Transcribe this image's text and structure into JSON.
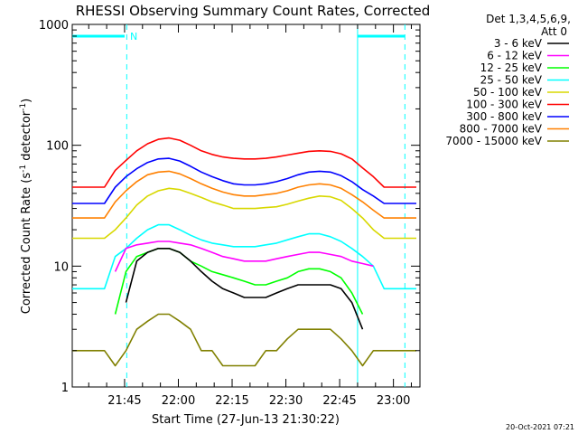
{
  "chart_data": {
    "type": "line",
    "title": "RHESSI Observing Summary Count Rates, Corrected",
    "xlabel": "Start Time (27-Jun-13 21:30:22)",
    "ylabel_main": "Corrected Count Rate (s",
    "ylabel_sup1": "-1",
    "ylabel_mid": " detector",
    "ylabel_sup2": "-1",
    "ylabel_end": ")",
    "y_scale": "log",
    "ylim": [
      1,
      1000
    ],
    "xlim_minutes": [
      0,
      97
    ],
    "x_ticks": [
      {
        "label": "21:45",
        "minute": 14.6
      },
      {
        "label": "22:00",
        "minute": 29.6
      },
      {
        "label": "22:15",
        "minute": 44.6
      },
      {
        "label": "22:30",
        "minute": 59.6
      },
      {
        "label": "22:45",
        "minute": 74.6
      },
      {
        "label": "23:00",
        "minute": 89.6
      }
    ],
    "y_ticks": [
      {
        "label": "1",
        "value": 1
      },
      {
        "label": "10",
        "value": 10
      },
      {
        "label": "100",
        "value": 100
      },
      {
        "label": "1000",
        "value": 1000
      }
    ],
    "legend_title": "Det 1,3,4,5,6,9,",
    "legend_subtitle": "Att 0",
    "legend_position": "right",
    "series": [
      {
        "name": "3 - 6 keV",
        "color": "#000000",
        "x": [
          15,
          18,
          21,
          24,
          27,
          30,
          33,
          36,
          39,
          42,
          45,
          48,
          51,
          54,
          57,
          60,
          63,
          66,
          69,
          72,
          75,
          78,
          81
        ],
        "y": [
          5,
          11,
          13,
          14,
          14,
          13,
          11,
          9,
          7.5,
          6.5,
          6,
          5.5,
          5.5,
          5.5,
          6,
          6.5,
          7,
          7,
          7,
          7,
          6.5,
          5,
          3
        ]
      },
      {
        "name": "6 - 12 keV",
        "color": "#ff00ff",
        "x": [
          12,
          15,
          18,
          21,
          24,
          27,
          30,
          33,
          36,
          39,
          42,
          45,
          48,
          51,
          54,
          57,
          60,
          63,
          66,
          69,
          72,
          75,
          78,
          81,
          84
        ],
        "y": [
          9,
          14,
          15,
          15.5,
          16,
          16,
          15.5,
          15,
          14,
          13,
          12,
          11.5,
          11,
          11,
          11,
          11.5,
          12,
          12.5,
          13,
          13,
          12.5,
          12,
          11,
          10.5,
          10
        ]
      },
      {
        "name": "12 - 25 keV",
        "color": "#00ff00",
        "x": [
          12,
          15,
          18,
          21,
          24,
          27,
          30,
          33,
          36,
          39,
          42,
          45,
          48,
          51,
          54,
          57,
          60,
          63,
          66,
          69,
          72,
          75,
          78,
          81
        ],
        "y": [
          4,
          9,
          12,
          13,
          14,
          14,
          13,
          11,
          10,
          9,
          8.5,
          8,
          7.5,
          7,
          7,
          7.5,
          8,
          9,
          9.5,
          9.5,
          9,
          8,
          6,
          4
        ]
      },
      {
        "name": "25 - 50 keV",
        "color": "#00ffff",
        "x": [
          0,
          3,
          6,
          9,
          12,
          15,
          18,
          21,
          24,
          27,
          30,
          33,
          36,
          39,
          42,
          45,
          48,
          51,
          54,
          57,
          60,
          63,
          66,
          69,
          72,
          75,
          78,
          81,
          84,
          87,
          90,
          93,
          96
        ],
        "y": [
          6.5,
          6.5,
          6.5,
          6.5,
          12,
          14,
          17,
          20,
          22,
          22,
          20,
          18,
          16.5,
          15.5,
          15,
          14.5,
          14.5,
          14.5,
          15,
          15.5,
          16.5,
          17.5,
          18.5,
          18.5,
          17.5,
          16,
          14,
          12,
          10,
          6.5,
          6.5,
          6.5,
          6.5
        ]
      },
      {
        "name": "50 - 100 keV",
        "color": "#d8d800",
        "x": [
          0,
          3,
          6,
          9,
          12,
          15,
          18,
          21,
          24,
          27,
          30,
          33,
          36,
          39,
          42,
          45,
          48,
          51,
          54,
          57,
          60,
          63,
          66,
          69,
          72,
          75,
          78,
          81,
          84,
          87,
          90,
          93,
          96
        ],
        "y": [
          17,
          17,
          17,
          17,
          20,
          25,
          32,
          38,
          42,
          44,
          43,
          40,
          37,
          34,
          32,
          30,
          30,
          30,
          30.5,
          31,
          32.5,
          34.5,
          36.5,
          38,
          37.5,
          35,
          30,
          25,
          20,
          17,
          17,
          17,
          17
        ]
      },
      {
        "name": "100 - 300 keV",
        "color": "#ff0000",
        "x": [
          0,
          3,
          6,
          9,
          12,
          15,
          18,
          21,
          24,
          27,
          30,
          33,
          36,
          39,
          42,
          45,
          48,
          51,
          54,
          57,
          60,
          63,
          66,
          69,
          72,
          75,
          78,
          81,
          84,
          87,
          90,
          93,
          96
        ],
        "y": [
          45,
          45,
          45,
          45,
          62,
          75,
          90,
          103,
          112,
          115,
          110,
          100,
          90,
          84,
          80,
          78,
          77,
          77,
          78,
          80,
          83,
          86,
          89,
          90,
          89,
          85,
          77,
          65,
          55,
          45,
          45,
          45,
          45
        ]
      },
      {
        "name": "300 - 800 keV",
        "color": "#0000ff",
        "x": [
          0,
          3,
          6,
          9,
          12,
          15,
          18,
          21,
          24,
          27,
          30,
          33,
          36,
          39,
          42,
          45,
          48,
          51,
          54,
          57,
          60,
          63,
          66,
          69,
          72,
          75,
          78,
          81,
          84,
          87,
          90,
          93,
          96
        ],
        "y": [
          33,
          33,
          33,
          33,
          45,
          55,
          64,
          72,
          77,
          78,
          74,
          67,
          60,
          55,
          51,
          48,
          47,
          47,
          48,
          50,
          53,
          57,
          60,
          61,
          60,
          56,
          50,
          43,
          38,
          33,
          33,
          33,
          33
        ]
      },
      {
        "name": "800 - 7000 keV",
        "color": "#ff8000",
        "x": [
          0,
          3,
          6,
          9,
          12,
          15,
          18,
          21,
          24,
          27,
          30,
          33,
          36,
          39,
          42,
          45,
          48,
          51,
          54,
          57,
          60,
          63,
          66,
          69,
          72,
          75,
          78,
          81,
          84,
          87,
          90,
          93,
          96
        ],
        "y": [
          25,
          25,
          25,
          25,
          34,
          42,
          50,
          57,
          60,
          61,
          58,
          53,
          48,
          44,
          41,
          39,
          38,
          38,
          39,
          40,
          42,
          45,
          47,
          48,
          47,
          44,
          39,
          34,
          29,
          25,
          25,
          25,
          25
        ]
      },
      {
        "name": "7000 - 15000 keV",
        "color": "#808000",
        "x": [
          0,
          3,
          6,
          9,
          12,
          15,
          18,
          21,
          24,
          27,
          30,
          33,
          36,
          39,
          42,
          45,
          48,
          51,
          54,
          57,
          60,
          63,
          66,
          69,
          72,
          75,
          78,
          81,
          84,
          87,
          90,
          93,
          96
        ],
        "y": [
          2,
          2,
          2,
          2,
          1.5,
          2,
          3,
          3.5,
          4,
          4,
          3.5,
          3,
          2,
          2,
          1.5,
          1.5,
          1.5,
          1.5,
          2,
          2,
          2.5,
          3,
          3,
          3,
          3,
          2.5,
          2,
          1.5,
          2,
          2,
          2,
          2,
          2
        ]
      }
    ],
    "overlays": {
      "flag_color": "#00ffff",
      "flag_label": "N",
      "flag_value": 800,
      "flag_left_end_minute": 14.6,
      "flag_right_start_minute": 79.6,
      "dashed_line_minutes": [
        15.2,
        92.8
      ],
      "solid_line_minutes": [
        79.6
      ]
    }
  },
  "footer": {
    "date": "20-Oct-2021 07:21"
  }
}
